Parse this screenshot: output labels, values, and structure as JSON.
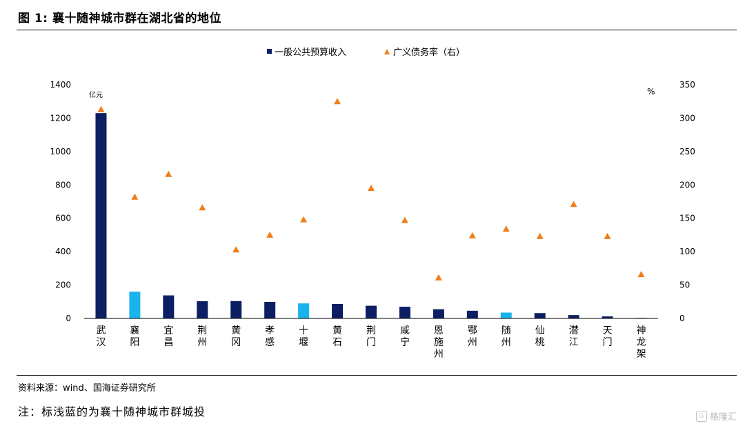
{
  "figure_title": "图 1:  襄十随神城市群在湖北省的地位",
  "source": "资料来源：wind、国海证券研究所",
  "note": "注：标浅蓝的为襄十随神城市群城投",
  "watermark": "格隆汇",
  "colors": {
    "bar": "#0b1f62",
    "bar_highlight": "#19b4ec",
    "marker": "#f07e18"
  },
  "chart_data": {
    "type": "bar",
    "categories": [
      "武汉",
      "襄阳",
      "宜昌",
      "荆州",
      "黄冈",
      "孝感",
      "十堰",
      "黄石",
      "荆门",
      "咸宁",
      "恩施州",
      "鄂州",
      "随州",
      "仙桃",
      "潜江",
      "天门",
      "神龙架"
    ],
    "highlight": [
      "襄阳",
      "十堰",
      "随州"
    ],
    "series": [
      {
        "name": "一般公共预算收入",
        "type": "bar",
        "axis": "left",
        "values": [
          1230,
          160,
          138,
          103,
          104,
          99,
          90,
          87,
          76,
          70,
          55,
          46,
          35,
          32,
          20,
          12,
          3
        ]
      },
      {
        "name": "广义债务率（右）",
        "type": "scatter",
        "marker": "triangle",
        "axis": "right",
        "values": [
          313,
          182,
          216,
          166,
          103,
          125,
          148,
          325,
          195,
          147,
          61,
          124,
          134,
          123,
          171,
          123,
          66
        ]
      }
    ],
    "y_left": {
      "unit": "亿元",
      "lim": [
        0,
        1400
      ],
      "ticks": [
        0,
        200,
        400,
        600,
        800,
        1000,
        1200,
        1400
      ]
    },
    "y_right": {
      "unit": "%",
      "lim": [
        0,
        350
      ],
      "ticks": [
        0,
        50,
        100,
        150,
        200,
        250,
        300,
        350
      ]
    },
    "legend_placement": "top-center",
    "grid": false
  }
}
